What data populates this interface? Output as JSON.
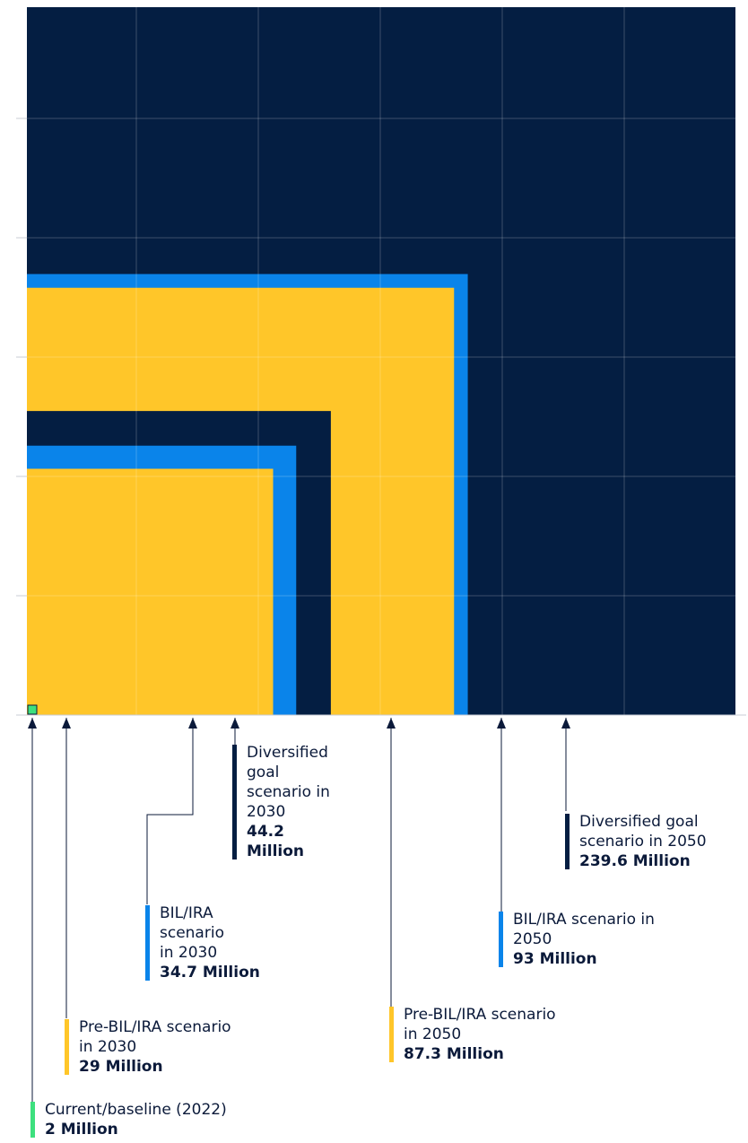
{
  "chart_data": {
    "type": "area",
    "colors": {
      "background": "#041e42",
      "diversified": "#041e42",
      "bil_ira": "#0a84ea",
      "pre_bil_ira": "#ffc629",
      "current": "#3de07e",
      "grid": "#ffffff",
      "text": "#0b1a3a"
    },
    "series": [
      {
        "key": "diversified-2050",
        "label": "Diversified goal scenario in 2050",
        "value_label": "239.6 Million",
        "value": 239.6,
        "color": "#041e42"
      },
      {
        "key": "bil-ira-2050",
        "label": "BIL/IRA scenario in 2050",
        "value_label": "93 Million",
        "value": 93,
        "color": "#0a84ea"
      },
      {
        "key": "pre-bil-ira-2050",
        "label": "Pre-BIL/IRA scenario in 2050",
        "value_label": "87.3 Million",
        "value": 87.3,
        "color": "#ffc629"
      },
      {
        "key": "diversified-2030",
        "label": "Diversified goal scenario in 2030",
        "value_label": "44.2 Million",
        "value": 44.2,
        "color": "#041e42"
      },
      {
        "key": "bil-ira-2030",
        "label": "BIL/IRA scenario in 2030",
        "value_label": "34.7 Million",
        "value": 34.7,
        "color": "#0a84ea"
      },
      {
        "key": "pre-bil-ira-2030",
        "label": "Pre-BIL/IRA scenario in 2030",
        "value_label": "29 Million",
        "value": 29,
        "color": "#ffc629"
      },
      {
        "key": "current-2022",
        "label": "Current/baseline (2022)",
        "value_label": "2 Million",
        "value": 2,
        "color": "#3de07e"
      }
    ]
  }
}
